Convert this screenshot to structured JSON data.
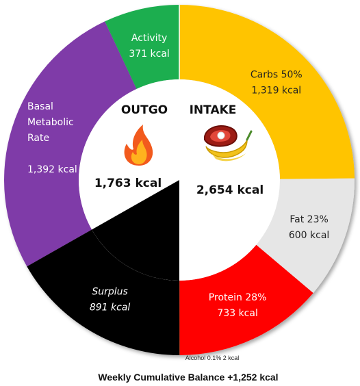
{
  "chart_data": {
    "type": "pie",
    "outgo": {
      "title": "OUTGO",
      "total": "1,763 kcal",
      "icon": "fire-icon",
      "segments": [
        {
          "name": "Activity",
          "value": 371,
          "label_lines": [
            "Activity",
            "371 kcal"
          ],
          "color": "#1aae4f",
          "text_color": "#ffffff"
        },
        {
          "name": "Basal Metabolic Rate",
          "value": 1392,
          "label_lines": [
            "Basal",
            "Metabolic",
            "Rate",
            "",
            "1,392 kcal"
          ],
          "color": "#7f3aa8",
          "text_color": "#ffffff"
        },
        {
          "name": "Surplus",
          "value": 891,
          "label_lines": [
            "Surplus",
            "891 kcal"
          ],
          "color": "#000000",
          "text_color": "#ffffff",
          "italic": true
        }
      ]
    },
    "intake": {
      "title": "INTAKE",
      "total": "2,654 kcal",
      "icon": "food-icon",
      "segments": [
        {
          "name": "Carbs",
          "value": 1319,
          "label_lines": [
            "Carbs 50%",
            "1,319 kcal"
          ],
          "color": "#ffc400",
          "text_color": "#222222"
        },
        {
          "name": "Fat",
          "value": 600,
          "label_lines": [
            "Fat 23%",
            "600 kcal"
          ],
          "color": "#e6e6e6",
          "text_color": "#222222"
        },
        {
          "name": "Protein",
          "value": 733,
          "label_lines": [
            "Protein 28%",
            "733 kcal"
          ],
          "color": "#ff0000",
          "text_color": "#ffffff"
        },
        {
          "name": "Alcohol",
          "value": 2,
          "label_lines": [],
          "color": "#6b3e1a",
          "text_color": "#222222"
        }
      ],
      "alcohol_note": "Alcohol 0.1% 2 kcal"
    },
    "footer": "Weekly Cumulative Balance +1,252 kcal"
  }
}
